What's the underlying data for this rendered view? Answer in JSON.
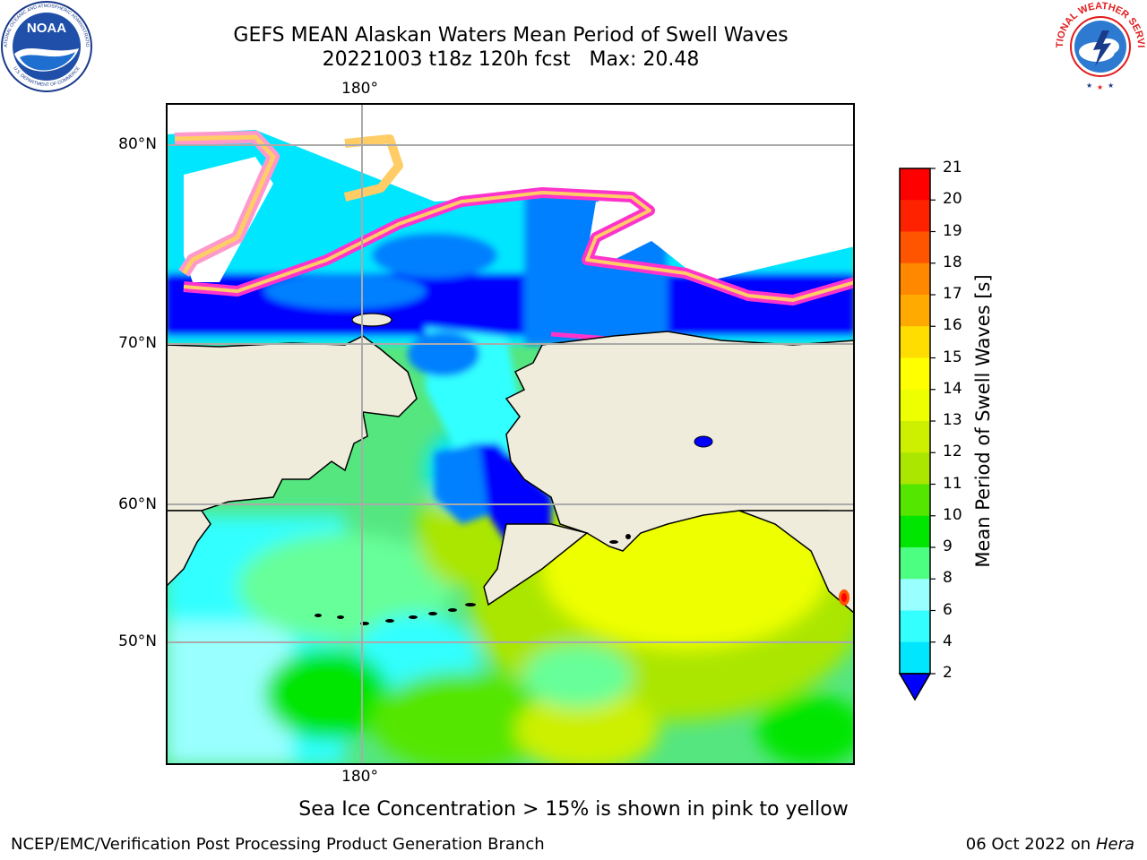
{
  "title": {
    "line1": "GEFS MEAN Alaskan Waters Mean Period of Swell Waves",
    "line2": "20221003 t18z 120h fcst   Max: 20.48"
  },
  "map": {
    "lon_label_top": "180°",
    "lon_label_bottom": "180°",
    "lat_labels": [
      "80°N",
      "70°N",
      "60°N",
      "50°N"
    ],
    "land_color": "#efecdc",
    "ice_colors": [
      "#ff33cc",
      "#ff99cc",
      "#ffcc66"
    ]
  },
  "colorbar": {
    "label": "Mean Period of Swell Waves [s]",
    "ticks": [
      "21",
      "20",
      "19",
      "18",
      "17",
      "16",
      "15",
      "14",
      "13",
      "12",
      "11",
      "10",
      "9",
      "8",
      "6",
      "4",
      "2"
    ],
    "colors": [
      "#0000ff",
      "#0080ff",
      "#00e6ff",
      "#33ffff",
      "#99ffff",
      "#4dff80",
      "#00e600",
      "#55e600",
      "#aae600",
      "#ccf000",
      "#eeff00",
      "#ffff00",
      "#ffdd00",
      "#ffaa00",
      "#ff8800",
      "#ff5500",
      "#ff2200",
      "#ff0000"
    ]
  },
  "note": "Sea Ice Concentration > 15% is shown in pink to yellow",
  "footer": {
    "left": "NCEP/EMC/Verification Post Processing Product Generation Branch",
    "right_prefix": "06 Oct 2022 on ",
    "right_italic": "Hera"
  },
  "logos": {
    "noaa_text": "NOAA",
    "noaa_ring": "NATIONAL OCEANIC AND ATMOSPHERIC ADMINISTRATION",
    "noaa_ring_bottom": "U.S. DEPARTMENT OF COMMERCE",
    "nws_ring": "NATIONAL WEATHER SERVICE"
  }
}
